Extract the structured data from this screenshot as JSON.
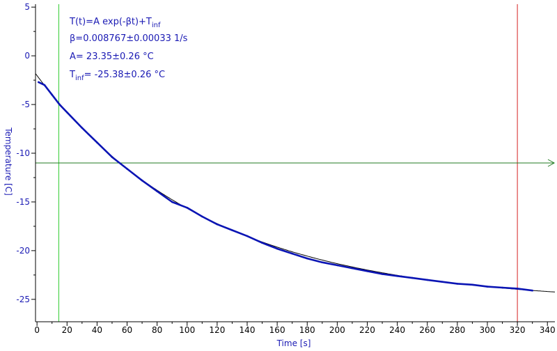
{
  "chart_data": {
    "type": "line",
    "xlabel": "Time [s]",
    "ylabel": "Temperature [C]",
    "xlim": [
      -1,
      345
    ],
    "ylim": [
      -27.3,
      5.3
    ],
    "x_ticks": [
      0,
      20,
      40,
      60,
      80,
      100,
      120,
      140,
      160,
      180,
      200,
      220,
      240,
      260,
      280,
      300,
      320,
      340
    ],
    "y_ticks": [
      5,
      0,
      -5,
      -10,
      -15,
      -20,
      -25
    ],
    "grid": false,
    "fit": {
      "model": "exponential",
      "A": 23.35,
      "beta": 0.008767,
      "T_inf": -25.38,
      "x_range": [
        -1,
        345
      ]
    },
    "series": [
      {
        "x": [
          1,
          5,
          10,
          15,
          20,
          30,
          40,
          50,
          60,
          70,
          80,
          90,
          100,
          110,
          120,
          130,
          140,
          150,
          160,
          170,
          180,
          190,
          200,
          210,
          220,
          230,
          240,
          250,
          260,
          270,
          280,
          290,
          300,
          310,
          320,
          330
        ],
        "y": [
          -2.7,
          -3.0,
          -4.0,
          -5.0,
          -5.8,
          -7.4,
          -8.9,
          -10.4,
          -11.6,
          -12.8,
          -13.9,
          -15.0,
          -15.6,
          -16.5,
          -17.3,
          -17.9,
          -18.5,
          -19.2,
          -19.8,
          -20.3,
          -20.8,
          -21.2,
          -21.5,
          -21.8,
          -22.1,
          -22.4,
          -22.6,
          -22.8,
          -23.0,
          -23.2,
          -23.4,
          -23.5,
          -23.7,
          -23.8,
          -23.9,
          -24.1
        ]
      }
    ],
    "vertical_markers": [
      {
        "x": 14.5,
        "color": "#2ecc2e"
      },
      {
        "x": 320,
        "color": "#d42020"
      }
    ],
    "horizontal_marker": {
      "y": -11.0,
      "color": "#207a20"
    },
    "annotations": {
      "line1_main": "T(t)=A exp(-βt)+T",
      "line1_sub": "inf",
      "line2": "β=0.008767±0.00033 1/s",
      "line3": "A= 23.35±0.26 °C",
      "line4_main": "T",
      "line4_sub": "inf",
      "line4_rest": "= -25.38±0.26 °C"
    },
    "colors": {
      "data": "#0a14b4",
      "fit": "#000000",
      "axis_text": "#1a1ab4",
      "annotation": "#1a1ab4"
    }
  }
}
